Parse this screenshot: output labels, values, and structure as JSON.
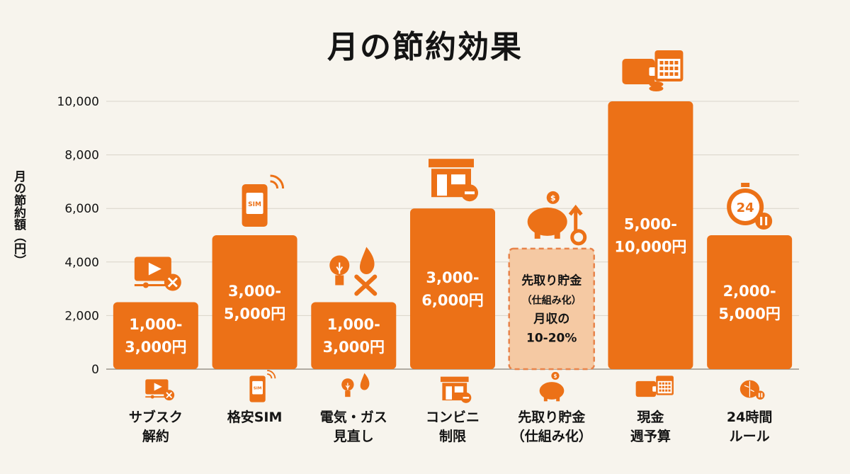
{
  "title": "月の節約効果",
  "colors": {
    "bar": "#ec7117",
    "bar_light": "#f5c9a3",
    "dashed": "#e8834a",
    "grid": "#d9d4ca",
    "text": "#141414",
    "bg": "#f7f4ed"
  },
  "chart_data": {
    "type": "bar",
    "title": "月の節約効果",
    "xlabel": "",
    "ylabel": "月の節約額（円）",
    "ylim": [
      0,
      10000
    ],
    "yticks": [
      "0",
      "2,000",
      "4,000",
      "6,000",
      "8,000",
      "10,000"
    ],
    "grid": true,
    "categories": [
      "サブスク\n解約",
      "格安SIM",
      "電気・ガス\n見直し",
      "コンビニ\n制限",
      "先取り貯金\n（仕組み化）",
      "現金\n週予算",
      "24時間\nルール"
    ],
    "values": [
      2500,
      5000,
      2500,
      6000,
      4500,
      10000,
      5000
    ],
    "ranges": [
      [
        1000,
        3000
      ],
      [
        3000,
        5000
      ],
      [
        1000,
        3000
      ],
      [
        3000,
        6000
      ],
      null,
      [
        5000,
        10000
      ],
      [
        2000,
        5000
      ]
    ],
    "data_labels": [
      "1,000-\n3,000円",
      "3,000-\n5,000円",
      "1,000-\n3,000円",
      "3,000-\n6,000円",
      "先取り貯金\n（仕組み化）\n月収の\n10-20%",
      "5,000-\n10,000円",
      "2,000-\n5,000円"
    ],
    "styles": [
      "solid",
      "solid",
      "solid",
      "solid",
      "dashed",
      "solid",
      "solid"
    ],
    "icons": [
      "video-cancel-icon",
      "smartphone-sim-icon",
      "bulb-flame-tools-icon",
      "store-minus-icon",
      "piggy-bank-growth-icon",
      "wallet-calendar-coins-icon",
      "stopwatch-24-pause-icon"
    ],
    "axis_icons": [
      "video-cancel-icon",
      "smartphone-sim-icon",
      "bulb-flame-icon",
      "store-minus-icon",
      "piggy-bank-icon",
      "wallet-calendar-icon",
      "brain-pause-icon"
    ]
  }
}
